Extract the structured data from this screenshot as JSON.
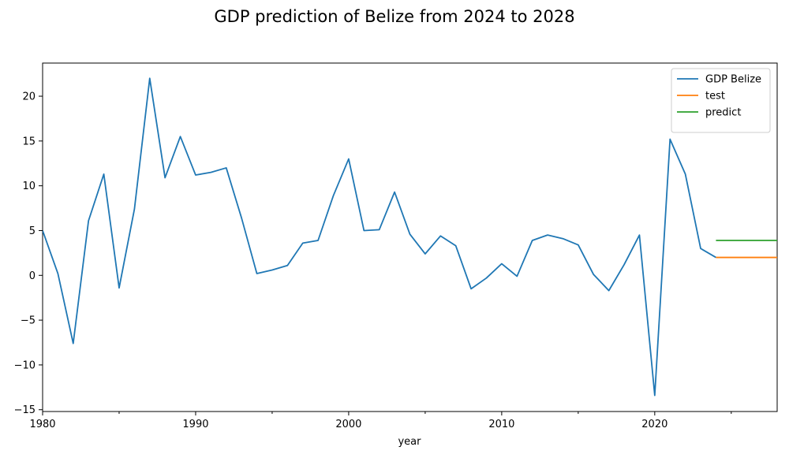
{
  "chart_data": {
    "type": "line",
    "title": "GDP prediction of Belize from 2024 to 2028",
    "xlabel": "year",
    "ylabel": "",
    "xlim": [
      1980,
      2028
    ],
    "ylim": [
      -15.2,
      23.7
    ],
    "x_ticks": [
      1980,
      1990,
      2000,
      2010,
      2020
    ],
    "x_minor_ticks": [
      1985,
      1995,
      2005,
      2015,
      2025
    ],
    "y_ticks": [
      -15,
      -10,
      -5,
      0,
      5,
      10,
      15,
      20
    ],
    "grid": false,
    "legend_position": "top-right",
    "series": [
      {
        "name": "GDP Belize",
        "color": "#1f77b4",
        "x": [
          1980,
          1981,
          1982,
          1983,
          1984,
          1985,
          1986,
          1987,
          1988,
          1989,
          1990,
          1991,
          1992,
          1993,
          1994,
          1995,
          1996,
          1997,
          1998,
          1999,
          2000,
          2001,
          2002,
          2003,
          2004,
          2005,
          2006,
          2007,
          2008,
          2009,
          2010,
          2011,
          2012,
          2013,
          2014,
          2015,
          2016,
          2017,
          2018,
          2019,
          2020,
          2021,
          2022,
          2023,
          2024
        ],
        "values": [
          5.0,
          0.2,
          -7.6,
          6.1,
          11.3,
          -1.4,
          7.4,
          22.0,
          10.9,
          15.5,
          11.2,
          11.5,
          12.0,
          6.4,
          0.2,
          0.6,
          1.1,
          3.6,
          3.9,
          8.9,
          13.0,
          5.0,
          5.1,
          9.3,
          4.6,
          2.4,
          4.4,
          3.3,
          -1.5,
          -0.3,
          1.3,
          -0.1,
          3.9,
          4.5,
          4.1,
          3.4,
          0.1,
          -1.7,
          1.2,
          4.5,
          -13.4,
          15.2,
          11.3,
          3.0,
          2.0
        ]
      },
      {
        "name": "test",
        "color": "#ff7f0e",
        "x": [
          2024,
          2025,
          2026,
          2027,
          2028
        ],
        "values": [
          2.0,
          2.0,
          2.0,
          2.0,
          2.0
        ]
      },
      {
        "name": "predict",
        "color": "#2ca02c",
        "x": [
          2024,
          2025,
          2026,
          2027,
          2028
        ],
        "values": [
          3.9,
          3.9,
          3.9,
          3.9,
          3.9
        ]
      }
    ]
  }
}
